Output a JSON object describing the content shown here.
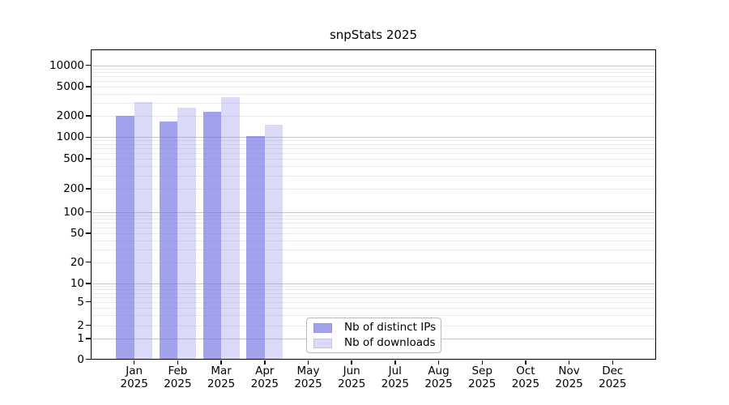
{
  "title": "snpStats 2025",
  "legend": {
    "items": [
      {
        "label": "Nb of distinct IPs",
        "color": "#a1a1ee",
        "fill": "rgba(110,110,229,0.65)"
      },
      {
        "label": "Nb of downloads",
        "color": "#dadaf8",
        "fill": "rgba(149,149,235,0.35)"
      }
    ]
  },
  "chart_data": {
    "type": "bar",
    "title": "snpStats 2025",
    "categories": [
      "Jan 2025",
      "Feb 2025",
      "Mar 2025",
      "Apr 2025",
      "May 2025",
      "Jun 2025",
      "Jul 2025",
      "Aug 2025",
      "Sep 2025",
      "Oct 2025",
      "Nov 2025",
      "Dec 2025"
    ],
    "series": [
      {
        "name": "Nb of distinct IPs",
        "color": "#a1a1ee",
        "values": [
          1980,
          1650,
          2240,
          1030,
          0,
          0,
          0,
          0,
          0,
          0,
          0,
          0
        ]
      },
      {
        "name": "Nb of downloads",
        "color": "#dadaf8",
        "values": [
          3100,
          2600,
          3600,
          1490,
          0,
          0,
          0,
          0,
          0,
          0,
          0,
          0
        ]
      }
    ],
    "xlabel": "",
    "ylabel": "",
    "yscale": "symlog",
    "yticks": [
      0,
      1,
      2,
      5,
      10,
      20,
      50,
      100,
      200,
      500,
      1000,
      2000,
      5000,
      10000
    ],
    "ylim": [
      0,
      16000
    ],
    "grid": true,
    "legend_position": "lower center inside plot"
  }
}
